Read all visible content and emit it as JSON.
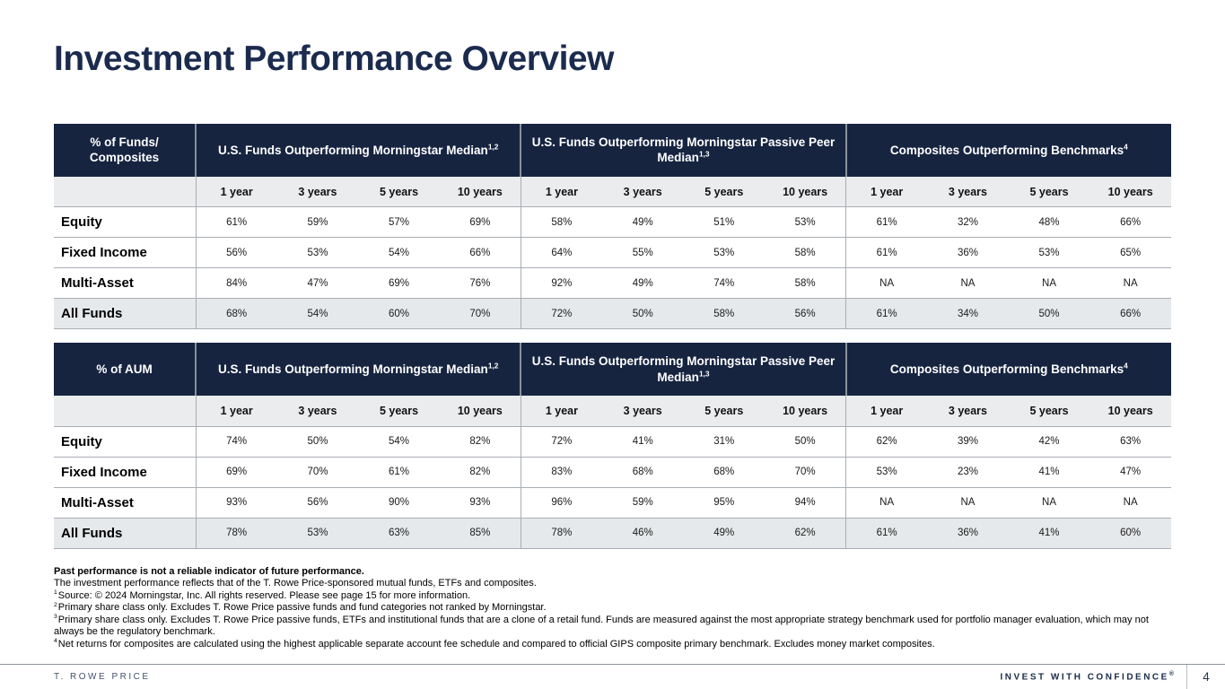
{
  "title": "Investment Performance Overview",
  "colors": {
    "header_navy": "#162440",
    "period_row_bg": "#eaecee",
    "total_row_bg": "#e6e9eb",
    "grid_border": "#a9aeb4",
    "title_navy": "#1b2b4e"
  },
  "tables": [
    {
      "corner_label": "% of Funds/\nComposites",
      "groups": [
        {
          "label": "U.S. Funds Outperforming Morningstar Median",
          "sup": "1,2"
        },
        {
          "label": "U.S. Funds Outperforming Morningstar Passive Peer Median",
          "sup": "1,3"
        },
        {
          "label": "Composites Outperforming Benchmarks",
          "sup": "4"
        }
      ],
      "period_headers": [
        "1 year",
        "3 years",
        "5 years",
        "10 years"
      ],
      "rows": [
        {
          "label": "Equity",
          "total": false,
          "values": [
            "61%",
            "59%",
            "57%",
            "69%",
            "58%",
            "49%",
            "51%",
            "53%",
            "61%",
            "32%",
            "48%",
            "66%"
          ]
        },
        {
          "label": "Fixed Income",
          "total": false,
          "values": [
            "56%",
            "53%",
            "54%",
            "66%",
            "64%",
            "55%",
            "53%",
            "58%",
            "61%",
            "36%",
            "53%",
            "65%"
          ]
        },
        {
          "label": "Multi-Asset",
          "total": false,
          "values": [
            "84%",
            "47%",
            "69%",
            "76%",
            "92%",
            "49%",
            "74%",
            "58%",
            "NA",
            "NA",
            "NA",
            "NA"
          ]
        },
        {
          "label": "All Funds",
          "total": true,
          "values": [
            "68%",
            "54%",
            "60%",
            "70%",
            "72%",
            "50%",
            "58%",
            "56%",
            "61%",
            "34%",
            "50%",
            "66%"
          ]
        }
      ]
    },
    {
      "corner_label": "% of AUM",
      "groups": [
        {
          "label": "U.S. Funds Outperforming Morningstar Median",
          "sup": "1,2"
        },
        {
          "label": "U.S. Funds Outperforming Morningstar Passive Peer Median",
          "sup": "1,3"
        },
        {
          "label": "Composites Outperforming Benchmarks",
          "sup": "4"
        }
      ],
      "period_headers": [
        "1 year",
        "3 years",
        "5 years",
        "10 years"
      ],
      "rows": [
        {
          "label": "Equity",
          "total": false,
          "values": [
            "74%",
            "50%",
            "54%",
            "82%",
            "72%",
            "41%",
            "31%",
            "50%",
            "62%",
            "39%",
            "42%",
            "63%"
          ]
        },
        {
          "label": "Fixed Income",
          "total": false,
          "values": [
            "69%",
            "70%",
            "61%",
            "82%",
            "83%",
            "68%",
            "68%",
            "70%",
            "53%",
            "23%",
            "41%",
            "47%"
          ]
        },
        {
          "label": "Multi-Asset",
          "total": false,
          "values": [
            "93%",
            "56%",
            "90%",
            "93%",
            "96%",
            "59%",
            "95%",
            "94%",
            "NA",
            "NA",
            "NA",
            "NA"
          ]
        },
        {
          "label": "All Funds",
          "total": true,
          "values": [
            "78%",
            "53%",
            "63%",
            "85%",
            "78%",
            "46%",
            "49%",
            "62%",
            "61%",
            "36%",
            "41%",
            "60%"
          ]
        }
      ]
    }
  ],
  "footnotes": {
    "bold_line": "Past performance is not a reliable indicator of future performance.",
    "intro_line": "The investment performance reflects that of the T. Rowe Price-sponsored mutual funds, ETFs and composites.",
    "notes": [
      {
        "sup": "1",
        "text": "Source: © 2024 Morningstar, Inc. All rights reserved. Please see page 15 for more information."
      },
      {
        "sup": "2",
        "text": "Primary share class only. Excludes T. Rowe Price passive funds and fund categories not ranked by Morningstar."
      },
      {
        "sup": "3",
        "text": "Primary share class only. Excludes T. Rowe Price passive funds, ETFs and institutional funds that are a clone of a retail fund. Funds are measured against the most appropriate strategy benchmark used for portfolio manager evaluation, which may not always be the regulatory benchmark."
      },
      {
        "sup": "4",
        "text": "Net returns for composites are calculated using the highest applicable separate account fee schedule and compared to official GIPS composite primary benchmark. Excludes money market composites."
      }
    ]
  },
  "footer": {
    "brand": "T. ROWE PRICE",
    "tagline": "INVEST WITH CONFIDENCE",
    "tagline_reg": "®",
    "page_number": "4"
  }
}
